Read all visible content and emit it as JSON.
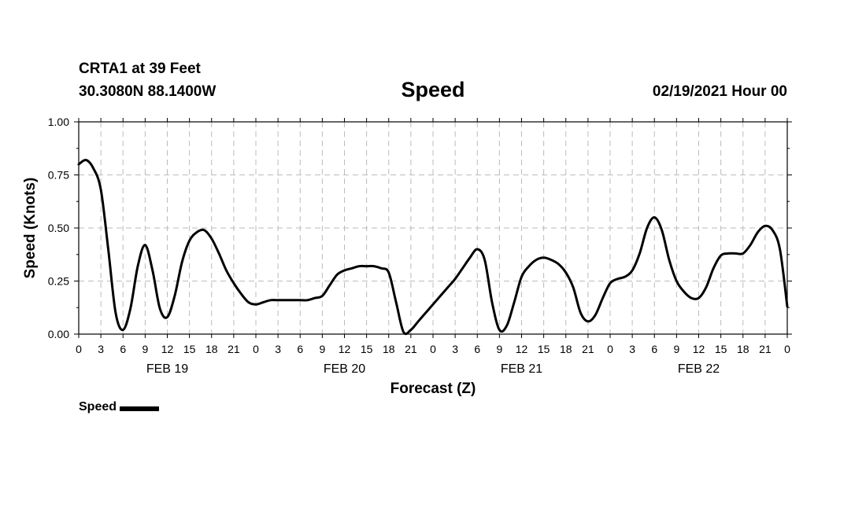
{
  "header": {
    "station": "CRTA1 at 39 Feet",
    "coords": "30.3080N 88.1400W",
    "title": "Speed",
    "date": "02/19/2021 Hour 00"
  },
  "chart_data": {
    "type": "line",
    "xlabel": "Forecast (Z)",
    "ylabel": "Speed (Knots)",
    "ylim": [
      0,
      1
    ],
    "yticks": [
      "0.00",
      "0.25",
      "0.50",
      "0.75",
      "1.00"
    ],
    "xlim": [
      0,
      96
    ],
    "xtick_labels": [
      "0",
      "3",
      "6",
      "9",
      "12",
      "15",
      "18",
      "21",
      "0",
      "3",
      "6",
      "9",
      "12",
      "15",
      "18",
      "21",
      "0",
      "3",
      "6",
      "9",
      "12",
      "15",
      "18",
      "21",
      "0",
      "3",
      "6",
      "9",
      "12",
      "15",
      "18",
      "21",
      "0"
    ],
    "day_labels": [
      {
        "label": "FEB 19",
        "hour": 12
      },
      {
        "label": "FEB 20",
        "hour": 36
      },
      {
        "label": "FEB 21",
        "hour": 60
      },
      {
        "label": "FEB 22",
        "hour": 84
      }
    ],
    "grid": true,
    "series": [
      {
        "name": "Speed",
        "color": "#000000",
        "x": [
          0,
          1,
          2,
          3,
          4,
          5,
          6,
          7,
          8,
          9,
          10,
          11,
          12,
          13,
          14,
          15,
          16,
          17,
          18,
          19,
          20,
          21,
          22,
          23,
          24,
          25,
          26,
          27,
          28,
          29,
          30,
          31,
          32,
          33,
          34,
          35,
          36,
          37,
          38,
          39,
          40,
          41,
          42,
          43,
          44,
          45,
          46,
          47,
          48,
          49,
          50,
          51,
          52,
          53,
          54,
          55,
          56,
          57,
          58,
          59,
          60,
          61,
          62,
          63,
          64,
          65,
          66,
          67,
          68,
          69,
          70,
          71,
          72,
          73,
          74,
          75,
          76,
          77,
          78,
          79,
          80,
          81,
          82,
          83,
          84,
          85,
          86,
          87,
          88,
          89,
          90,
          91,
          92,
          93,
          94,
          95,
          96
        ],
        "y": [
          0.8,
          0.82,
          0.78,
          0.68,
          0.4,
          0.1,
          0.02,
          0.12,
          0.32,
          0.42,
          0.3,
          0.12,
          0.08,
          0.18,
          0.34,
          0.44,
          0.48,
          0.49,
          0.45,
          0.38,
          0.3,
          0.24,
          0.19,
          0.15,
          0.14,
          0.15,
          0.16,
          0.16,
          0.16,
          0.16,
          0.16,
          0.16,
          0.17,
          0.18,
          0.23,
          0.28,
          0.3,
          0.31,
          0.32,
          0.32,
          0.32,
          0.31,
          0.29,
          0.15,
          0.01,
          0.02,
          0.06,
          0.1,
          0.14,
          0.18,
          0.22,
          0.26,
          0.31,
          0.36,
          0.4,
          0.35,
          0.15,
          0.02,
          0.04,
          0.15,
          0.27,
          0.32,
          0.35,
          0.36,
          0.35,
          0.33,
          0.29,
          0.22,
          0.1,
          0.06,
          0.09,
          0.17,
          0.24,
          0.26,
          0.27,
          0.3,
          0.38,
          0.5,
          0.55,
          0.49,
          0.35,
          0.25,
          0.2,
          0.17,
          0.17,
          0.22,
          0.31,
          0.37,
          0.38,
          0.38,
          0.38,
          0.42,
          0.48,
          0.51,
          0.49,
          0.4,
          0.13
        ]
      }
    ],
    "legend": "bottom-left"
  }
}
